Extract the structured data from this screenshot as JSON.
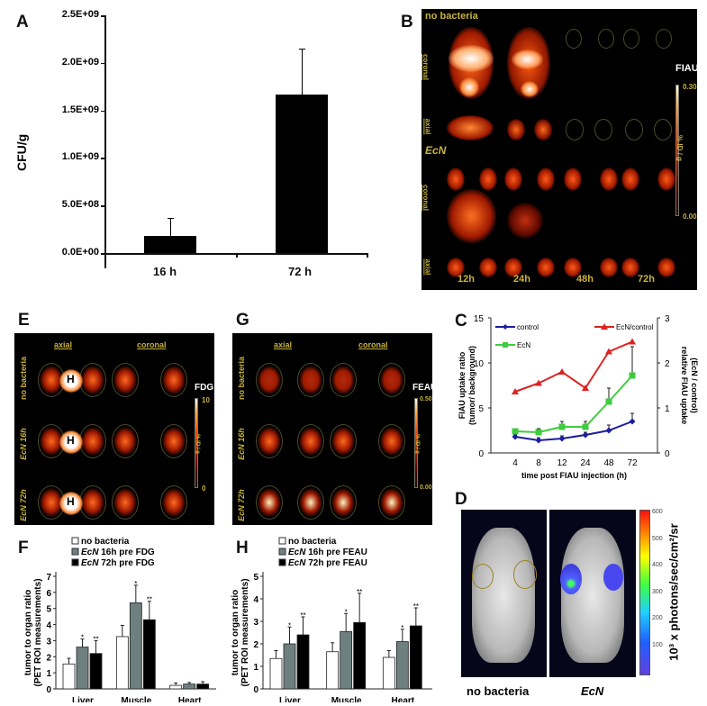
{
  "panels": {
    "A": {
      "label": "A",
      "ylabel": "CFU/g",
      "yticks": [
        "2.5E+09",
        "2.0E+09",
        "1.5E+09",
        "1.0E+09",
        "5.0E+08",
        "0.0E+00"
      ],
      "categories": [
        "16 h",
        "72 h"
      ]
    },
    "B": {
      "label": "B",
      "group1": "no bacteria",
      "group2": "EcN",
      "row_coronal": "coronal",
      "row_axial": "axial",
      "times": [
        "12h",
        "24h",
        "48h",
        "72h"
      ],
      "scale_title": "FIAU",
      "scale_max": "0.30",
      "scale_min": "0.00",
      "scale_unit": "% ID / g"
    },
    "C": {
      "label": "C",
      "ylabel_left_1": "FIAU uptake ratio",
      "ylabel_left_2": "(tumor/ background)",
      "ylabel_right_1": "relative FIAU uptake",
      "ylabel_right_2": "(EcN / control)",
      "xlabel": "time post FIAU injection (h)",
      "xticks": [
        "4",
        "8",
        "12",
        "24",
        "48",
        "72"
      ],
      "yticks_left": [
        "15",
        "10",
        "5",
        "0"
      ],
      "yticks_right": [
        "3",
        "2",
        "1",
        "0"
      ],
      "legend": [
        "control",
        "EcN",
        "EcN/control"
      ]
    },
    "D": {
      "label": "D",
      "caption_left": "no bacteria",
      "caption_right": "EcN",
      "scale_ticks": [
        "600",
        "500",
        "400",
        "300",
        "200",
        "100"
      ],
      "scale_unit": "10³ x photons/sec/cm²/sr"
    },
    "E": {
      "label": "E",
      "col1": "axial",
      "col2": "coronal",
      "rows": [
        "no bacteria",
        "EcN 16h",
        "EcN 72h"
      ],
      "heart_marker": "H",
      "scale_title": "FDG",
      "scale_max": "10",
      "scale_min": "0",
      "scale_unit": "% ID / g"
    },
    "G": {
      "label": "G",
      "col1": "axial",
      "col2": "coronal",
      "rows": [
        "no bacteria",
        "EcN 16h",
        "EcN 72h"
      ],
      "scale_title": "FEAU",
      "scale_max": "0.50",
      "scale_min": "0.00",
      "scale_unit": "% ID / g"
    },
    "F": {
      "label": "F",
      "ylabel_1": "tumor to organ ratio",
      "ylabel_2": "(PET ROI measurements)",
      "yticks": [
        "6",
        "5",
        "4",
        "3",
        "2",
        "1",
        "0"
      ],
      "categories": [
        "Liver",
        "Muscle",
        "Heart"
      ],
      "legend": [
        "no bacteria",
        "EcN 16h pre FDG",
        "EcN 72h pre FDG"
      ]
    },
    "H": {
      "label": "H",
      "ylabel_1": "tumor to organ ratio",
      "ylabel_2": "(PET ROI measurements)",
      "yticks": [
        "4",
        "3",
        "2",
        "1",
        "0"
      ],
      "categories": [
        "Liver",
        "Muscle",
        "Heart"
      ],
      "legend": [
        "no bacteria",
        "EcN 16h pre FEAU",
        "EcN 72h pre FEAU"
      ]
    }
  },
  "chart_data": [
    {
      "panel": "A",
      "type": "bar",
      "title": "",
      "xlabel": "",
      "ylabel": "CFU/g",
      "categories": [
        "16 h",
        "72 h"
      ],
      "values": [
        180000000,
        1670000000
      ],
      "errors": [
        190000000,
        480000000
      ],
      "ylim": [
        0,
        2500000000
      ],
      "colors": [
        "#000000"
      ]
    },
    {
      "panel": "C",
      "type": "line",
      "xlabel": "time post FIAU injection (h)",
      "ylabel": "FIAU uptake ratio (tumor/ background)",
      "ylabel_right": "relative FIAU uptake (EcN / control)",
      "categories": [
        "4",
        "8",
        "12",
        "24",
        "48",
        "72"
      ],
      "ylim": [
        0,
        15
      ],
      "ylim_right": [
        0,
        3
      ],
      "series": [
        {
          "name": "control",
          "axis": "left",
          "color": "#1c1ca0",
          "values": [
            1.8,
            1.4,
            1.6,
            2.0,
            2.5,
            3.5
          ],
          "errors": [
            0.2,
            0.3,
            0.3,
            0.3,
            0.6,
            0.9
          ]
        },
        {
          "name": "EcN",
          "axis": "left",
          "color": "#3ecc3e",
          "values": [
            2.4,
            2.3,
            2.9,
            2.9,
            5.7,
            8.6
          ],
          "errors": [
            0.2,
            0.4,
            0.6,
            0.6,
            1.5,
            3.2
          ]
        },
        {
          "name": "EcN/control",
          "axis": "right",
          "color": "#dd2222",
          "values": [
            1.36,
            1.55,
            1.8,
            1.44,
            2.25,
            2.47
          ]
        }
      ],
      "legend_position": "top"
    },
    {
      "panel": "F",
      "type": "bar",
      "ylabel": "tumor to organ ratio (PET ROI measurements)",
      "categories": [
        "Liver",
        "Muscle",
        "Heart"
      ],
      "ylim": [
        0,
        7
      ],
      "series": [
        {
          "name": "no bacteria",
          "color": "#ffffff",
          "values": [
            1.55,
            3.25,
            0.22
          ],
          "errors": [
            0.35,
            0.7,
            0.15
          ],
          "sig": [
            "",
            "",
            ""
          ]
        },
        {
          "name": "EcN 16h pre FDG",
          "color": "#6e7f7f",
          "values": [
            2.6,
            5.35,
            0.3
          ],
          "errors": [
            0.5,
            1.1,
            0.1
          ],
          "sig": [
            "*",
            "*",
            ""
          ]
        },
        {
          "name": "EcN 72h pre FDG",
          "color": "#000000",
          "values": [
            2.2,
            4.3,
            0.3
          ],
          "errors": [
            0.8,
            1.15,
            0.15
          ],
          "sig": [
            "**",
            "**",
            ""
          ]
        }
      ]
    },
    {
      "panel": "H",
      "type": "bar",
      "ylabel": "tumor to organ ratio (PET ROI measurements)",
      "categories": [
        "Liver",
        "Muscle",
        "Heart"
      ],
      "ylim": [
        0,
        5
      ],
      "series": [
        {
          "name": "no bacteria",
          "color": "#ffffff",
          "values": [
            1.35,
            1.65,
            1.4
          ],
          "errors": [
            0.35,
            0.4,
            0.3
          ],
          "sig": [
            "",
            "",
            ""
          ]
        },
        {
          "name": "EcN 16h pre FEAU",
          "color": "#6e7f7f",
          "values": [
            2.0,
            2.55,
            2.1
          ],
          "errors": [
            0.75,
            0.8,
            0.55
          ],
          "sig": [
            "*",
            "*",
            "*"
          ]
        },
        {
          "name": "EcN 72h pre FEAU",
          "color": "#000000",
          "values": [
            2.4,
            2.95,
            2.8
          ],
          "errors": [
            0.8,
            1.3,
            0.8
          ],
          "sig": [
            "**",
            "**",
            "**"
          ]
        }
      ]
    }
  ]
}
